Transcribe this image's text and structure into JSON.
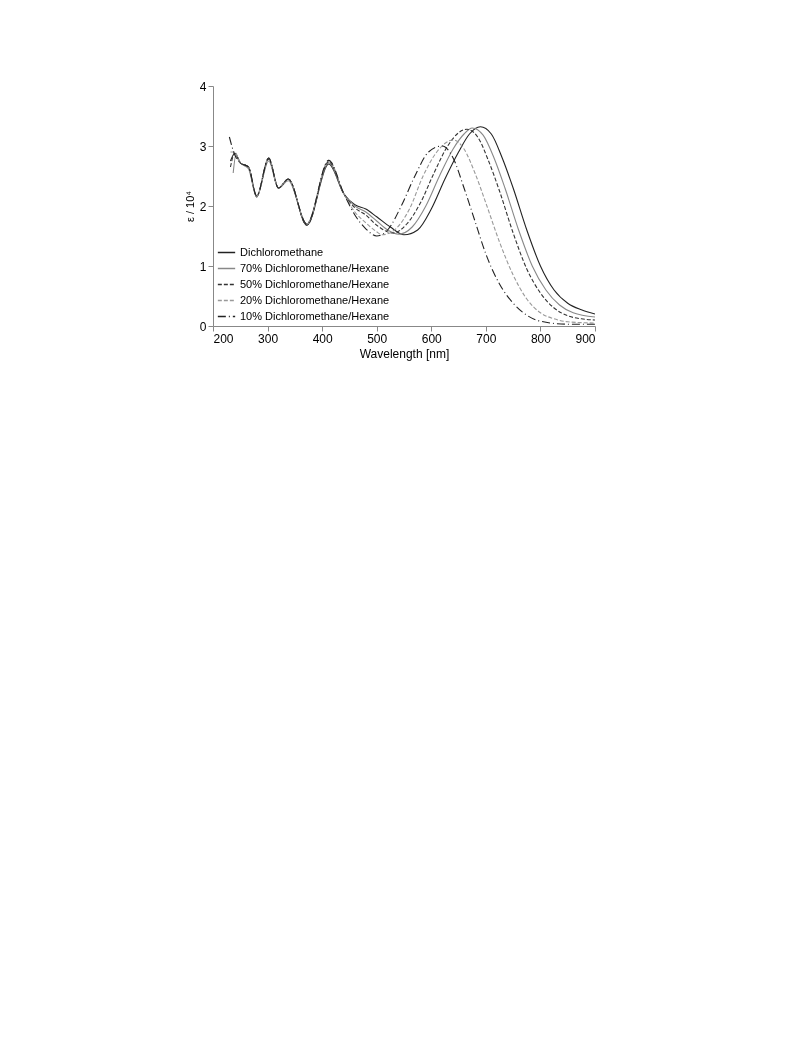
{
  "chart_data": {
    "type": "line",
    "xlabel": "Wavelength [nm]",
    "ylabel": "ε / 10⁴",
    "xlim": [
      200,
      900
    ],
    "ylim": [
      0,
      4
    ],
    "xticks": [
      200,
      300,
      400,
      500,
      600,
      700,
      800,
      900
    ],
    "yticks": [
      0,
      1,
      2,
      3,
      4
    ],
    "grid": false,
    "legend": "bottom left",
    "marker": "none",
    "series": [
      {
        "name": "Dichloromethane",
        "color": "#222222",
        "line_style": "solid",
        "x": [
          232,
          240,
          250,
          265,
          280,
          302,
          320,
          338,
          372,
          412,
          440,
          460,
          480,
          500,
          525,
          550,
          575,
          600,
          625,
          650,
          670,
          690,
          710,
          730,
          750,
          775,
          800,
          825,
          850,
          875,
          900
        ],
        "values": [
          2.75,
          2.88,
          2.72,
          2.65,
          2.15,
          2.8,
          2.3,
          2.45,
          1.68,
          2.7,
          2.2,
          2.02,
          1.95,
          1.82,
          1.65,
          1.52,
          1.6,
          1.95,
          2.45,
          2.9,
          3.2,
          3.32,
          3.2,
          2.8,
          2.3,
          1.6,
          1.0,
          0.6,
          0.38,
          0.27,
          0.2
        ]
      },
      {
        "name": "70% Dichloromethane/Hexane",
        "color": "#888888",
        "line_style": "solid",
        "x": [
          237,
          242,
          250,
          265,
          280,
          302,
          320,
          338,
          372,
          412,
          440,
          460,
          480,
          500,
          520,
          540,
          565,
          590,
          615,
          640,
          660,
          675,
          695,
          715,
          735,
          760,
          785,
          810,
          835,
          860,
          900
        ],
        "values": [
          2.55,
          2.85,
          2.72,
          2.62,
          2.15,
          2.75,
          2.3,
          2.42,
          1.7,
          2.72,
          2.2,
          2.0,
          1.9,
          1.75,
          1.6,
          1.53,
          1.65,
          2.0,
          2.5,
          2.95,
          3.2,
          3.3,
          3.18,
          2.8,
          2.3,
          1.6,
          1.0,
          0.6,
          0.35,
          0.22,
          0.15
        ]
      },
      {
        "name": "50% Dichloromethane/Hexane",
        "color": "#333333",
        "line_style": "dashed",
        "x": [
          232,
          240,
          250,
          265,
          280,
          302,
          320,
          338,
          372,
          412,
          440,
          460,
          480,
          500,
          530,
          555,
          580,
          605,
          630,
          650,
          665,
          685,
          705,
          725,
          750,
          775,
          800,
          825,
          850,
          875,
          900
        ],
        "values": [
          2.65,
          2.88,
          2.72,
          2.65,
          2.17,
          2.78,
          2.3,
          2.45,
          1.68,
          2.74,
          2.2,
          1.97,
          1.85,
          1.68,
          1.55,
          1.7,
          2.05,
          2.55,
          3.0,
          3.22,
          3.28,
          3.15,
          2.75,
          2.25,
          1.55,
          0.95,
          0.55,
          0.3,
          0.17,
          0.12,
          0.1
        ]
      },
      {
        "name": "20% Dichloromethane/Hexane",
        "color": "#999999",
        "line_style": "dashed",
        "x": [
          232,
          240,
          250,
          265,
          280,
          302,
          320,
          338,
          372,
          412,
          440,
          460,
          480,
          500,
          510,
          535,
          560,
          585,
          610,
          640,
          660,
          680,
          700,
          725,
          750,
          775,
          800,
          825,
          850,
          900
        ],
        "values": [
          2.9,
          2.9,
          2.72,
          2.65,
          2.17,
          2.8,
          2.3,
          2.45,
          1.7,
          2.76,
          2.2,
          1.9,
          1.72,
          1.57,
          1.52,
          1.62,
          1.95,
          2.5,
          2.9,
          3.1,
          2.95,
          2.55,
          2.05,
          1.4,
          0.85,
          0.45,
          0.22,
          0.12,
          0.07,
          0.05
        ]
      },
      {
        "name": "10% Dichloromethane/Hexane",
        "color": "#222222",
        "line_style": "dashdot",
        "x": [
          230,
          240,
          250,
          265,
          280,
          302,
          320,
          338,
          372,
          412,
          440,
          460,
          480,
          500,
          520,
          545,
          570,
          595,
          620,
          640,
          660,
          680,
          700,
          725,
          750,
          775,
          800,
          850,
          900
        ],
        "values": [
          3.15,
          2.85,
          2.72,
          2.65,
          2.17,
          2.8,
          2.3,
          2.45,
          1.7,
          2.76,
          2.2,
          1.85,
          1.62,
          1.5,
          1.6,
          2.0,
          2.5,
          2.9,
          3.0,
          2.8,
          2.3,
          1.75,
          1.2,
          0.7,
          0.38,
          0.18,
          0.08,
          0.03,
          0.03
        ]
      }
    ]
  }
}
